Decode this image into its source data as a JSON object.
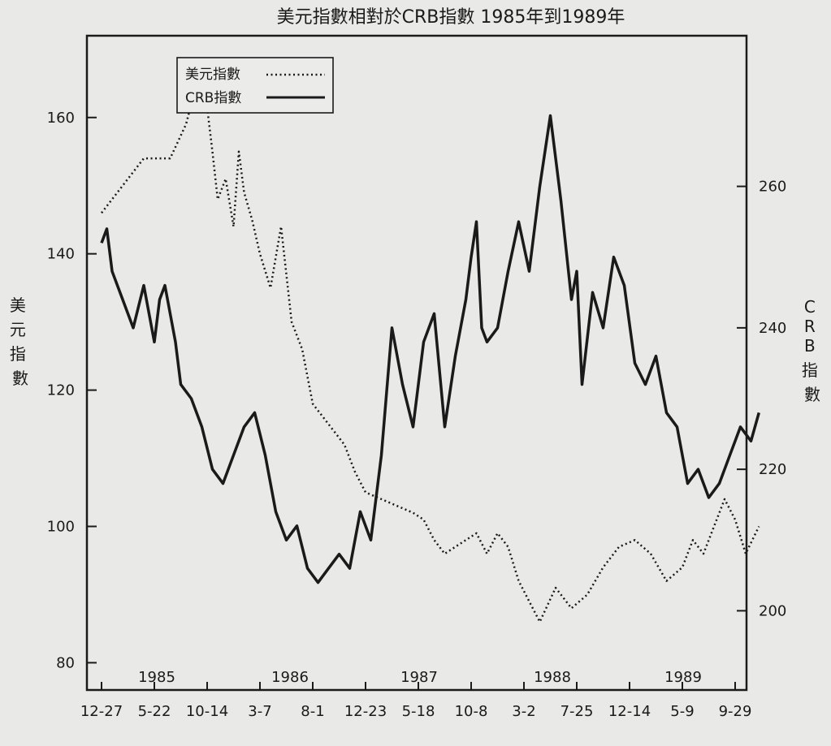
{
  "chart_data": {
    "type": "line",
    "title": "美元指數相對於CRB指數 1985年到1989年",
    "ylabel_left": "美元指數",
    "ylabel_right": "CRB指數",
    "left_axis": {
      "ticks": [
        80,
        100,
        120,
        140,
        160
      ],
      "ylim": [
        76,
        172
      ]
    },
    "right_axis": {
      "ticks": [
        200,
        220,
        240,
        260
      ],
      "ylim": [
        188.8,
        281.3
      ]
    },
    "x_tick_labels": [
      "12-27",
      "5-22",
      "10-14",
      "3-7",
      "8-1",
      "12-23",
      "5-18",
      "10-8",
      "3-2",
      "7-25",
      "12-14",
      "5-9",
      "9-29"
    ],
    "year_labels": [
      "1985",
      "1986",
      "1987",
      "1988",
      "1989"
    ],
    "legend": {
      "placement": "top-left"
    },
    "series": [
      {
        "name": "美元指數",
        "axis": "left",
        "style": "dotted",
        "x": [
          0,
          0.4,
          0.8,
          1.3,
          1.6,
          1.9,
          2.1,
          2.2,
          2.35,
          2.5,
          2.6,
          2.7,
          2.85,
          3.0,
          3.2,
          3.4,
          3.6,
          3.8,
          4.0,
          4.2,
          4.4,
          4.5,
          4.6,
          4.8,
          5.0,
          5.3,
          5.6,
          5.9,
          6.1,
          6.3,
          6.5,
          6.7,
          6.9,
          7.1,
          7.3,
          7.5,
          7.7,
          7.9,
          8.1,
          8.3,
          8.6,
          8.9,
          9.2,
          9.5,
          9.8,
          10.1,
          10.4,
          10.7,
          11.0,
          11.2,
          11.4,
          11.6,
          11.8,
          12.0,
          12.2,
          12.45
        ],
        "values": [
          146,
          150,
          154,
          154,
          159,
          168,
          155,
          148,
          151,
          144,
          155,
          149,
          145,
          140,
          135,
          144,
          130,
          126,
          118,
          116,
          114,
          113,
          112,
          108,
          105,
          104,
          103,
          102,
          101,
          98,
          96,
          97,
          98,
          99,
          96,
          99,
          97,
          92,
          89,
          86,
          91,
          88,
          90,
          94,
          97,
          98,
          96,
          92,
          94,
          98,
          96,
          100,
          104,
          101,
          96,
          100
        ]
      },
      {
        "name": "CRB指數",
        "axis": "right",
        "style": "solid",
        "x": [
          0,
          0.1,
          0.2,
          0.4,
          0.6,
          0.8,
          1.0,
          1.1,
          1.2,
          1.4,
          1.5,
          1.7,
          1.9,
          2.1,
          2.3,
          2.5,
          2.7,
          2.9,
          3.1,
          3.3,
          3.5,
          3.7,
          3.9,
          4.1,
          4.3,
          4.5,
          4.7,
          4.9,
          5.1,
          5.3,
          5.5,
          5.7,
          5.9,
          6.1,
          6.3,
          6.5,
          6.7,
          6.9,
          7.0,
          7.1,
          7.2,
          7.3,
          7.5,
          7.7,
          7.9,
          8.1,
          8.3,
          8.5,
          8.7,
          8.9,
          9.0,
          9.1,
          9.3,
          9.5,
          9.7,
          9.9,
          10.1,
          10.3,
          10.5,
          10.7,
          10.9,
          11.1,
          11.3,
          11.5,
          11.7,
          11.9,
          12.1,
          12.3,
          12.45
        ],
        "values": [
          252,
          254,
          248,
          244,
          240,
          246,
          238,
          244,
          246,
          238,
          232,
          230,
          226,
          220,
          218,
          222,
          226,
          228,
          222,
          214,
          210,
          212,
          206,
          204,
          206,
          208,
          206,
          214,
          210,
          222,
          240,
          232,
          226,
          238,
          242,
          226,
          236,
          244,
          250,
          255,
          240,
          238,
          240,
          248,
          255,
          248,
          260,
          270,
          258,
          244,
          248,
          232,
          245,
          240,
          250,
          246,
          235,
          232,
          236,
          228,
          226,
          218,
          220,
          216,
          218,
          222,
          226,
          224,
          228
        ]
      }
    ]
  }
}
